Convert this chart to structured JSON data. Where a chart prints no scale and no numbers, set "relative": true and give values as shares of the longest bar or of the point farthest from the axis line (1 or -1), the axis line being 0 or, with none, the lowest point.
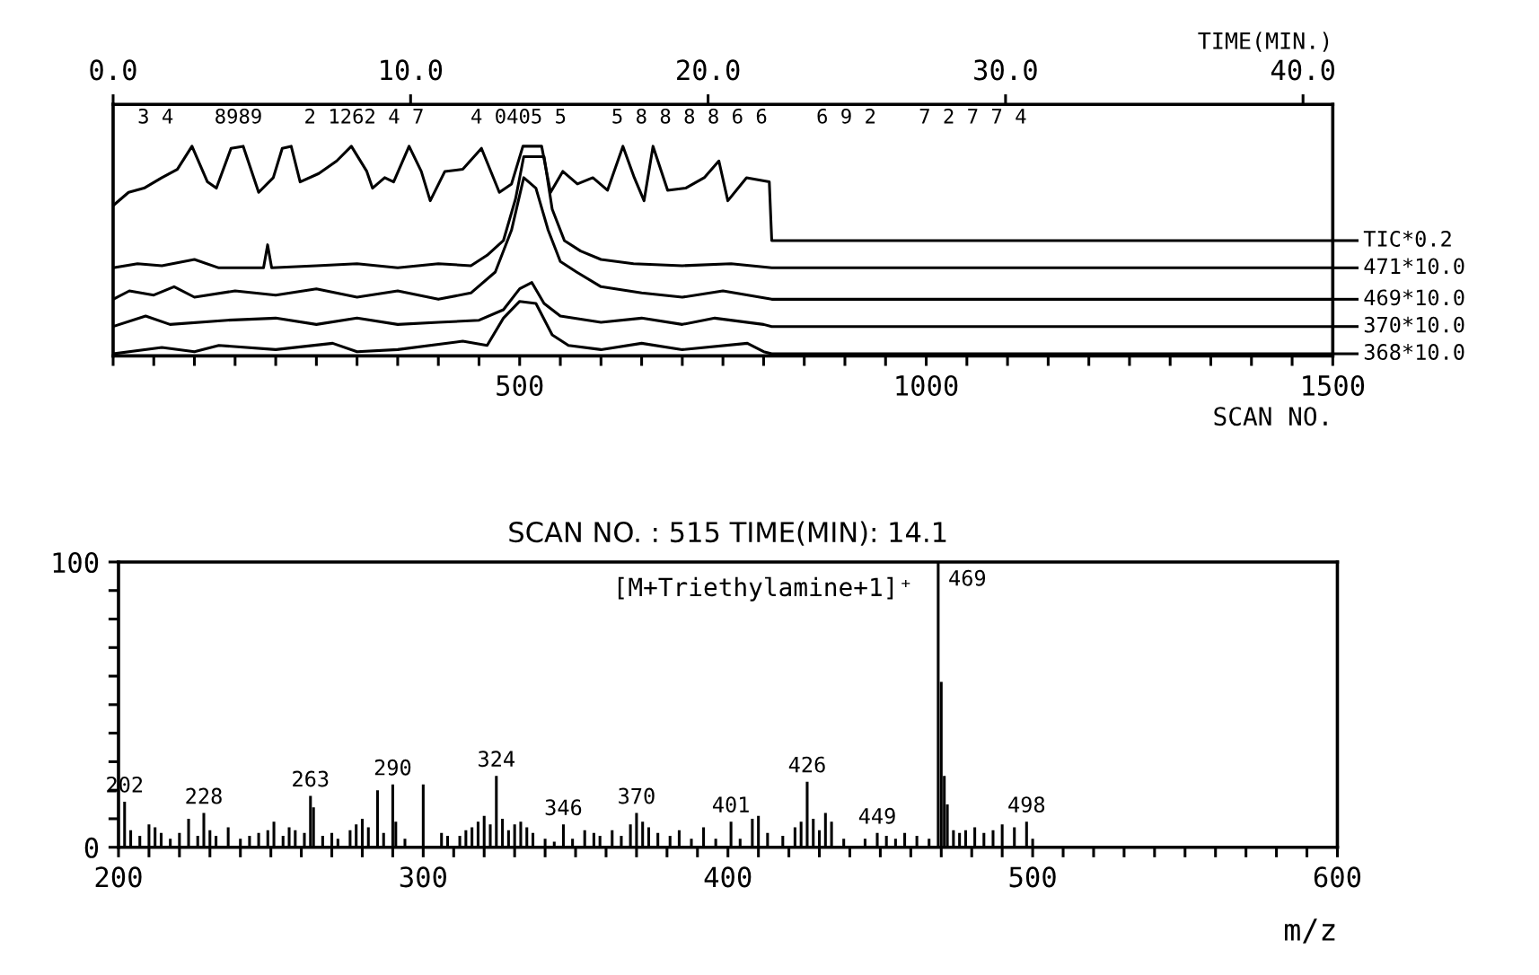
{
  "chart_data": [
    {
      "type": "line",
      "relative": true,
      "xlabel": "SCAN NO.",
      "x2label": "TIME(MIN.)",
      "legend": "right",
      "grid": false,
      "line_style": "solid",
      "marker": "none",
      "xlim": [
        0,
        1500
      ],
      "xticks": [
        {
          "value": 0,
          "label": null
        },
        {
          "value": 50,
          "label": null
        },
        {
          "value": 100,
          "label": null
        },
        {
          "value": 150,
          "label": null
        },
        {
          "value": 200,
          "label": null
        },
        {
          "value": 250,
          "label": null
        },
        {
          "value": 300,
          "label": null
        },
        {
          "value": 350,
          "label": null
        },
        {
          "value": 400,
          "label": null
        },
        {
          "value": 450,
          "label": null
        },
        500,
        {
          "value": 550,
          "label": null
        },
        {
          "value": 600,
          "label": null
        },
        {
          "value": 650,
          "label": null
        },
        {
          "value": 700,
          "label": null
        },
        {
          "value": 750,
          "label": null
        },
        {
          "value": 800,
          "label": null
        },
        {
          "value": 850,
          "label": null
        },
        {
          "value": 900,
          "label": null
        },
        {
          "value": 950,
          "label": null
        },
        1000,
        {
          "value": 1050,
          "label": null
        },
        {
          "value": 1100,
          "label": null
        },
        {
          "value": 1150,
          "label": null
        },
        {
          "value": 1200,
          "label": null
        },
        {
          "value": 1250,
          "label": null
        },
        {
          "value": 1300,
          "label": null
        },
        {
          "value": 1350,
          "label": null
        },
        {
          "value": 1400,
          "label": null
        },
        {
          "value": 1450,
          "label": null
        },
        1500
      ],
      "x2lim": [
        0,
        41
      ],
      "x2ticks": [
        {
          "value": 0,
          "label": "0.0"
        },
        {
          "value": 10,
          "label": "10.0"
        },
        {
          "value": 20,
          "label": "20.0"
        },
        {
          "value": 30,
          "label": "30.0"
        },
        {
          "value": 40,
          "label": "40.0"
        }
      ],
      "series": [
        {
          "name": "TIC*0.2",
          "color": "#000000",
          "x": [
            1,
            19,
            38,
            60,
            79,
            97,
            116,
            127,
            145,
            160,
            179,
            197,
            208,
            219,
            230,
            253,
            275,
            293,
            312,
            319,
            334,
            345,
            364,
            379,
            390,
            408,
            430,
            453,
            475,
            490,
            504,
            527,
            538,
            553,
            571,
            590,
            608,
            627,
            641,
            653,
            664,
            682,
            704,
            727,
            745,
            756,
            779,
            807,
            810,
            1500
          ],
          "values": [
            0.72,
            0.78,
            0.8,
            0.85,
            0.89,
            1.0,
            0.83,
            0.8,
            0.99,
            1.0,
            0.78,
            0.85,
            0.99,
            1.0,
            0.83,
            0.87,
            0.93,
            1.0,
            0.88,
            0.8,
            0.85,
            0.83,
            1.0,
            0.88,
            0.74,
            0.88,
            0.89,
            0.99,
            0.78,
            0.82,
            1.0,
            1.0,
            0.78,
            0.88,
            0.82,
            0.85,
            0.79,
            1.0,
            0.85,
            0.74,
            1.0,
            0.79,
            0.8,
            0.85,
            0.93,
            0.74,
            0.85,
            0.83,
            0.55,
            0.55
          ]
        },
        {
          "name": "471*10.0",
          "color": "#000000",
          "x": [
            0,
            30,
            60,
            100,
            130,
            185,
            190,
            195,
            250,
            300,
            350,
            400,
            440,
            460,
            480,
            495,
            505,
            530,
            540,
            555,
            575,
            600,
            640,
            700,
            760,
            810,
            1500
          ],
          "values": [
            0.42,
            0.44,
            0.43,
            0.46,
            0.42,
            0.42,
            0.53,
            0.42,
            0.43,
            0.44,
            0.42,
            0.44,
            0.43,
            0.48,
            0.55,
            0.75,
            0.95,
            0.95,
            0.7,
            0.55,
            0.5,
            0.46,
            0.44,
            0.43,
            0.44,
            0.42,
            0.42
          ]
        },
        {
          "name": "469*10.0",
          "color": "#000000",
          "x": [
            0,
            20,
            50,
            75,
            100,
            150,
            200,
            250,
            300,
            350,
            400,
            440,
            470,
            490,
            505,
            520,
            535,
            550,
            570,
            600,
            650,
            700,
            750,
            810,
            1500
          ],
          "values": [
            0.27,
            0.31,
            0.29,
            0.33,
            0.28,
            0.31,
            0.29,
            0.32,
            0.28,
            0.31,
            0.27,
            0.3,
            0.4,
            0.6,
            0.85,
            0.8,
            0.6,
            0.45,
            0.4,
            0.33,
            0.3,
            0.28,
            0.31,
            0.27,
            0.27
          ]
        },
        {
          "name": "370*10.0",
          "color": "#000000",
          "x": [
            0,
            40,
            70,
            140,
            200,
            250,
            300,
            350,
            400,
            450,
            480,
            500,
            515,
            530,
            550,
            600,
            650,
            700,
            740,
            800,
            810,
            1500
          ],
          "values": [
            0.14,
            0.19,
            0.15,
            0.17,
            0.18,
            0.15,
            0.18,
            0.15,
            0.16,
            0.17,
            0.22,
            0.32,
            0.35,
            0.25,
            0.19,
            0.16,
            0.18,
            0.15,
            0.18,
            0.15,
            0.14,
            0.14
          ]
        },
        {
          "name": "368*10.0",
          "color": "#000000",
          "x": [
            0,
            60,
            100,
            130,
            200,
            270,
            300,
            350,
            430,
            460,
            480,
            500,
            520,
            540,
            560,
            600,
            650,
            700,
            780,
            800,
            810,
            1500
          ],
          "values": [
            0.01,
            0.04,
            0.02,
            0.05,
            0.03,
            0.06,
            0.02,
            0.03,
            0.07,
            0.05,
            0.18,
            0.26,
            0.25,
            0.1,
            0.05,
            0.03,
            0.06,
            0.03,
            0.06,
            0.02,
            0.01,
            0.01
          ]
        }
      ],
      "annotations": [
        "3 4",
        "8989",
        "2 1262 4 7",
        "4 0405 5",
        "5 8 8 8 8 6 6",
        "6 9 2",
        "7 2 7 7 4"
      ]
    },
    {
      "type": "bar",
      "title": "SCAN NO. : 515 TIME(MIN): 14.1",
      "xlabel": "m/z",
      "color": "#000000",
      "grid": false,
      "xlim": [
        200,
        600
      ],
      "xticks": [
        200,
        {
          "value": 210,
          "label": null
        },
        {
          "value": 220,
          "label": null
        },
        {
          "value": 230,
          "label": null
        },
        {
          "value": 240,
          "label": null
        },
        {
          "value": 250,
          "label": null
        },
        {
          "value": 260,
          "label": null
        },
        {
          "value": 270,
          "label": null
        },
        {
          "value": 280,
          "label": null
        },
        {
          "value": 290,
          "label": null
        },
        300,
        {
          "value": 310,
          "label": null
        },
        {
          "value": 320,
          "label": null
        },
        {
          "value": 330,
          "label": null
        },
        {
          "value": 340,
          "label": null
        },
        {
          "value": 350,
          "label": null
        },
        {
          "value": 360,
          "label": null
        },
        {
          "value": 370,
          "label": null
        },
        {
          "value": 380,
          "label": null
        },
        {
          "value": 390,
          "label": null
        },
        400,
        {
          "value": 410,
          "label": null
        },
        {
          "value": 420,
          "label": null
        },
        {
          "value": 430,
          "label": null
        },
        {
          "value": 440,
          "label": null
        },
        {
          "value": 450,
          "label": null
        },
        {
          "value": 460,
          "label": null
        },
        {
          "value": 470,
          "label": null
        },
        {
          "value": 480,
          "label": null
        },
        {
          "value": 490,
          "label": null
        },
        500,
        {
          "value": 510,
          "label": null
        },
        {
          "value": 520,
          "label": null
        },
        {
          "value": 530,
          "label": null
        },
        {
          "value": 540,
          "label": null
        },
        {
          "value": 550,
          "label": null
        },
        {
          "value": 560,
          "label": null
        },
        {
          "value": 570,
          "label": null
        },
        {
          "value": 580,
          "label": null
        },
        {
          "value": 590,
          "label": null
        },
        600
      ],
      "ylim": [
        0,
        100
      ],
      "yticks": [
        0,
        {
          "value": 10,
          "label": null
        },
        {
          "value": 20,
          "label": null
        },
        {
          "value": 30,
          "label": null
        },
        {
          "value": 40,
          "label": null
        },
        {
          "value": 50,
          "label": null
        },
        {
          "value": 60,
          "label": null
        },
        {
          "value": 70,
          "label": null
        },
        {
          "value": 80,
          "label": null
        },
        {
          "value": 90,
          "label": null
        },
        100
      ],
      "x": [
        202,
        204,
        207,
        210,
        212,
        214,
        217,
        220,
        223,
        226,
        228,
        230,
        232,
        236,
        240,
        243,
        246,
        249,
        251,
        254,
        256,
        258,
        261,
        263,
        264,
        267,
        270,
        272,
        276,
        278,
        280,
        282,
        285,
        287,
        290,
        291,
        294,
        300,
        306,
        308,
        312,
        314,
        316,
        318,
        320,
        322,
        324,
        326,
        328,
        330,
        332,
        334,
        336,
        340,
        343,
        346,
        349,
        353,
        356,
        358,
        362,
        365,
        368,
        370,
        372,
        374,
        377,
        381,
        384,
        388,
        392,
        396,
        401,
        404,
        408,
        410,
        413,
        418,
        422,
        424,
        426,
        428,
        430,
        432,
        434,
        438,
        445,
        449,
        452,
        455,
        458,
        462,
        466,
        469,
        470,
        471,
        472,
        474,
        476,
        478,
        481,
        484,
        487,
        490,
        494,
        498,
        500
      ],
      "values": [
        16,
        6,
        4,
        8,
        7,
        5,
        3,
        5,
        10,
        4,
        12,
        6,
        4,
        7,
        3,
        4,
        5,
        6,
        9,
        4,
        7,
        6,
        5,
        18,
        14,
        4,
        5,
        3,
        6,
        8,
        10,
        7,
        20,
        5,
        22,
        9,
        3,
        22,
        5,
        4,
        4,
        6,
        7,
        9,
        11,
        8,
        25,
        10,
        6,
        8,
        9,
        7,
        5,
        3,
        2,
        8,
        3,
        6,
        5,
        4,
        6,
        4,
        8,
        12,
        9,
        7,
        5,
        4,
        6,
        3,
        7,
        3,
        9,
        3,
        10,
        11,
        5,
        4,
        7,
        9,
        23,
        10,
        6,
        12,
        9,
        3,
        3,
        5,
        4,
        3,
        5,
        4,
        3,
        100,
        58,
        25,
        15,
        6,
        5,
        6,
        7,
        5,
        6,
        8,
        7,
        9,
        3
      ],
      "annotations": [
        {
          "text": "202",
          "x": 202,
          "y": 16
        },
        {
          "text": "228",
          "x": 228,
          "y": 12
        },
        {
          "text": "263",
          "x": 263,
          "y": 18
        },
        {
          "text": "290",
          "x": 290,
          "y": 22
        },
        {
          "text": "324",
          "x": 324,
          "y": 25
        },
        {
          "text": "346",
          "x": 346,
          "y": 8
        },
        {
          "text": "370",
          "x": 370,
          "y": 12
        },
        {
          "text": "401",
          "x": 401,
          "y": 9
        },
        {
          "text": "426",
          "x": 426,
          "y": 23
        },
        {
          "text": "449",
          "x": 449,
          "y": 5
        },
        {
          "text": "469",
          "x": 469,
          "y": 100
        },
        {
          "text": "498",
          "x": 498,
          "y": 9
        },
        "[M+Triethylamine+1]⁺"
      ]
    }
  ]
}
